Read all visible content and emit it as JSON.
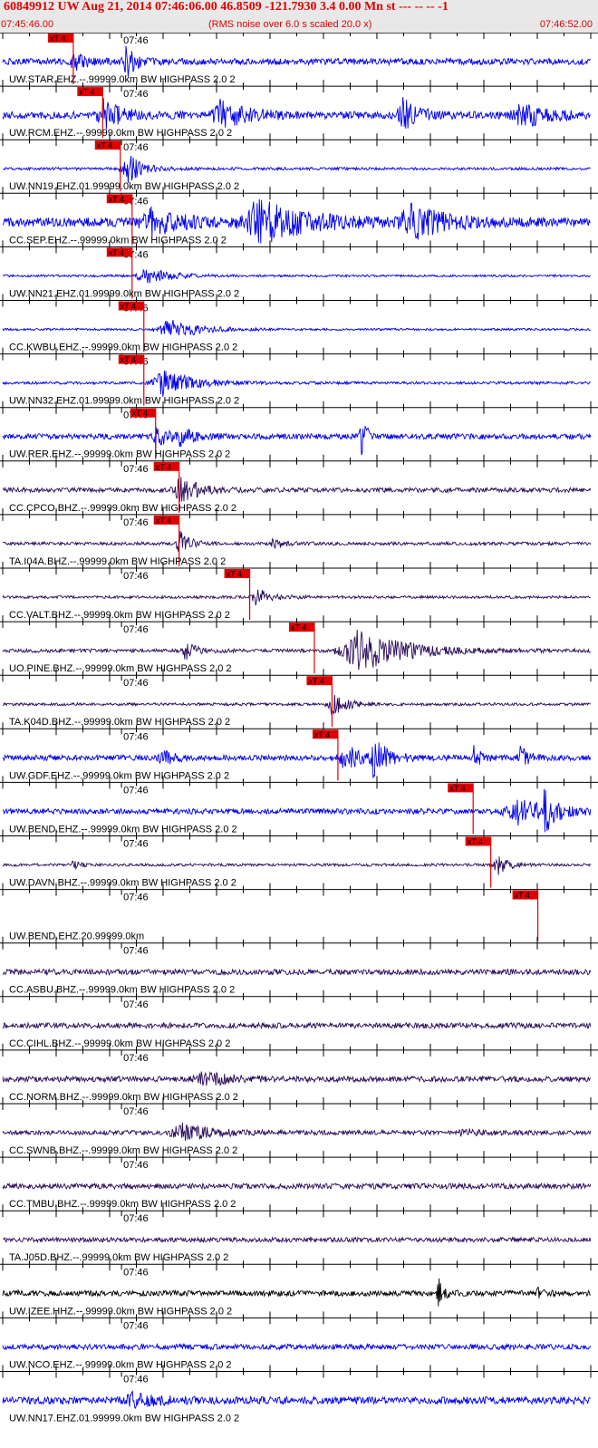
{
  "header": {
    "title": "60849912 UW Aug 21, 2014 07:46:06.00   46.8509 -121.7930  3.4 0.00 Mn st --- -- --  -1",
    "start_time": "07:45:46.00",
    "note": "(RMS noise over 6.0 s scaled 20.0 x)",
    "end_time": "07:46:52.00"
  },
  "chart_data": {
    "type": "line",
    "tick_label": "07:46",
    "pick_label": "xT 4",
    "colors": {
      "blue": "#0000ee",
      "purple": "#2a0a5a",
      "black": "#000000",
      "pick": "#e00000",
      "grid": "#000000"
    },
    "traces": [
      {
        "label": "UW.STAR.EHZ.--.99999.0km BW  HIGHPASS  2.0  2",
        "color": "blue",
        "amp": 3.5,
        "pick": 0.12,
        "bursts": [
          {
            "pos": 0.12,
            "amp": 12,
            "width": 0.02
          },
          {
            "pos": 0.21,
            "amp": 17,
            "width": 0.02
          }
        ]
      },
      {
        "label": "UW.RCM.EHZ.--.99999.0km BW  HIGHPASS  2.0  2",
        "color": "blue",
        "amp": 4,
        "pick": 0.17,
        "bursts": [
          {
            "pos": 0.17,
            "amp": 16,
            "width": 0.035
          },
          {
            "pos": 0.37,
            "amp": 17,
            "width": 0.05
          },
          {
            "pos": 0.68,
            "amp": 20,
            "width": 0.03
          },
          {
            "pos": 0.88,
            "amp": 14,
            "width": 0.05
          }
        ]
      },
      {
        "label": "UW.NN19.EHZ.01.99999.0km BW  HIGHPASS  2.0  2",
        "color": "blue",
        "amp": 1.5,
        "pick": 0.2,
        "bursts": [
          {
            "pos": 0.21,
            "amp": 18,
            "width": 0.03
          }
        ]
      },
      {
        "label": "CC.SEP.EHZ.--.99999.0km BW  HIGHPASS  2.0  2",
        "color": "blue",
        "amp": 5,
        "pick": 0.22,
        "bursts": [
          {
            "pos": 0.25,
            "amp": 14,
            "width": 0.06
          },
          {
            "pos": 0.43,
            "amp": 25,
            "width": 0.09
          },
          {
            "pos": 0.69,
            "amp": 20,
            "width": 0.06
          }
        ]
      },
      {
        "label": "UW.NN21.EHZ.01.99999.0km BW  HIGHPASS  2.0  2",
        "color": "blue",
        "amp": 1.2,
        "pick": 0.22,
        "bursts": [
          {
            "pos": 0.24,
            "amp": 10,
            "width": 0.05
          }
        ]
      },
      {
        "label": "CC.KWBU.EHZ.--.99999.0km BW  HIGHPASS  2.0  2",
        "color": "blue",
        "amp": 1.2,
        "pick": 0.24,
        "bursts": [
          {
            "pos": 0.28,
            "amp": 12,
            "width": 0.06
          }
        ]
      },
      {
        "label": "UW.NN32.EHZ.01.99999.0km BW  HIGHPASS  2.0  2",
        "color": "blue",
        "amp": 1.5,
        "pick": 0.24,
        "bursts": [
          {
            "pos": 0.27,
            "amp": 15,
            "width": 0.06
          }
        ]
      },
      {
        "label": "UW.RER.EHZ.--.99999.0km BW  HIGHPASS  2.0  2",
        "color": "blue",
        "amp": 3,
        "pick": 0.26,
        "bursts": [
          {
            "pos": 0.26,
            "amp": 14,
            "width": 0.02
          },
          {
            "pos": 0.3,
            "amp": 10,
            "width": 0.03
          },
          {
            "pos": 0.61,
            "amp": 25,
            "width": 0.01
          }
        ]
      },
      {
        "label": "CC.CPCO.BHZ.--.99999.0km BW  HIGHPASS  2.0  2",
        "color": "purple",
        "amp": 2.5,
        "pick": 0.3,
        "bursts": [
          {
            "pos": 0.3,
            "amp": 14,
            "width": 0.04
          }
        ]
      },
      {
        "label": "TA.I04A.BHZ.--.99999.0km BW  HIGHPASS  2.0  2",
        "color": "purple",
        "amp": 1.8,
        "pick": 0.3,
        "bursts": [
          {
            "pos": 0.3,
            "amp": 14,
            "width": 0.02
          },
          {
            "pos": 0.46,
            "amp": 6,
            "width": 0.02
          }
        ]
      },
      {
        "label": "CC.VALT.BHZ.--.99999.0km BW  HIGHPASS  2.0  2",
        "color": "purple",
        "amp": 1.5,
        "pick": 0.42,
        "bursts": [
          {
            "pos": 0.43,
            "amp": 10,
            "width": 0.03
          }
        ]
      },
      {
        "label": "UO.PINE.BHZ.--.99999.0km BW  HIGHPASS  2.0  2",
        "color": "purple",
        "amp": 2,
        "pick": 0.53,
        "bursts": [
          {
            "pos": 0.31,
            "amp": 10,
            "width": 0.02
          },
          {
            "pos": 0.6,
            "amp": 25,
            "width": 0.09
          }
        ]
      },
      {
        "label": "TA.K04D.BHZ.--.99999.0km BW  HIGHPASS  2.0  2",
        "color": "purple",
        "amp": 1.5,
        "pick": 0.56,
        "bursts": [
          {
            "pos": 0.56,
            "amp": 12,
            "width": 0.03
          }
        ]
      },
      {
        "label": "UW.GDF.EHZ.--.99999.0km BW  HIGHPASS  2.0  2",
        "color": "blue",
        "amp": 3,
        "pick": 0.57,
        "bursts": [
          {
            "pos": 0.27,
            "amp": 10,
            "width": 0.02
          },
          {
            "pos": 0.58,
            "amp": 16,
            "width": 0.03
          },
          {
            "pos": 0.63,
            "amp": 20,
            "width": 0.03
          },
          {
            "pos": 0.8,
            "amp": 14,
            "width": 0.015
          },
          {
            "pos": 0.88,
            "amp": 15,
            "width": 0.015
          }
        ]
      },
      {
        "label": "UW.BEND.EHZ.--.99999.0km BW  HIGHPASS  2.0  2",
        "color": "blue",
        "amp": 3,
        "pick": 0.8,
        "bursts": [
          {
            "pos": 0.87,
            "amp": 15,
            "width": 0.06
          },
          {
            "pos": 0.92,
            "amp": 22,
            "width": 0.02
          }
        ]
      },
      {
        "label": "UW.DAVN.BHZ.--.99999.0km BW  HIGHPASS  2.0  2",
        "color": "purple",
        "amp": 1.5,
        "pick": 0.83,
        "bursts": [
          {
            "pos": 0.12,
            "amp": 7,
            "width": 0.01
          },
          {
            "pos": 0.84,
            "amp": 12,
            "width": 0.02
          }
        ]
      },
      {
        "label": "UW.BEND.EHZ.20.99999.0km",
        "color": "none",
        "amp": 0,
        "pick": 0.91,
        "bursts": []
      },
      {
        "label": "CC.ASBU.BHZ.--.99999.0km BW  HIGHPASS  2.0  2",
        "color": "purple",
        "amp": 3,
        "pick": null,
        "bursts": []
      },
      {
        "label": "CC.CIHL.BHZ.--.99999.0km BW  HIGHPASS  2.0  2",
        "color": "purple",
        "amp": 3,
        "pick": null,
        "bursts": []
      },
      {
        "label": "CC.NORM.BHZ.--.99999.0km BW  HIGHPASS  2.0  2",
        "color": "purple",
        "amp": 3,
        "pick": null,
        "bursts": [
          {
            "pos": 0.34,
            "amp": 7,
            "width": 0.06
          }
        ]
      },
      {
        "label": "CC.SWNB.BHZ.--.99999.0km BW  HIGHPASS  2.0  2",
        "color": "purple",
        "amp": 2.5,
        "pick": null,
        "bursts": [
          {
            "pos": 0.3,
            "amp": 10,
            "width": 0.06
          },
          {
            "pos": 0.78,
            "amp": 4,
            "width": 0.03
          }
        ]
      },
      {
        "label": "CC.TMBU.BHZ.--.99999.0km BW  HIGHPASS  2.0  2",
        "color": "purple",
        "amp": 3,
        "pick": null,
        "bursts": []
      },
      {
        "label": "TA.J05D.BHZ.--.99999.0km BW  HIGHPASS  2.0  2",
        "color": "purple",
        "amp": 2.5,
        "pick": null,
        "bursts": []
      },
      {
        "label": "UW.IZEE.HHZ.--.99999.0km BW  HIGHPASS  2.0  2",
        "color": "black",
        "amp": 3,
        "pick": null,
        "bursts": [
          {
            "pos": 0.74,
            "amp": 18,
            "width": 0.01
          },
          {
            "pos": 0.91,
            "amp": 8,
            "width": 0.01
          }
        ]
      },
      {
        "label": "UW.NCO.EHZ.--.99999.0km BW  HIGHPASS  2.0  2",
        "color": "blue",
        "amp": 3,
        "pick": null,
        "bursts": []
      },
      {
        "label": "UW.NN17.EHZ.01.99999.0km BW  HIGHPASS  2.0  2",
        "color": "blue",
        "amp": 4,
        "pick": null,
        "bursts": [
          {
            "pos": 0.22,
            "amp": 7,
            "width": 0.05
          }
        ]
      }
    ]
  }
}
